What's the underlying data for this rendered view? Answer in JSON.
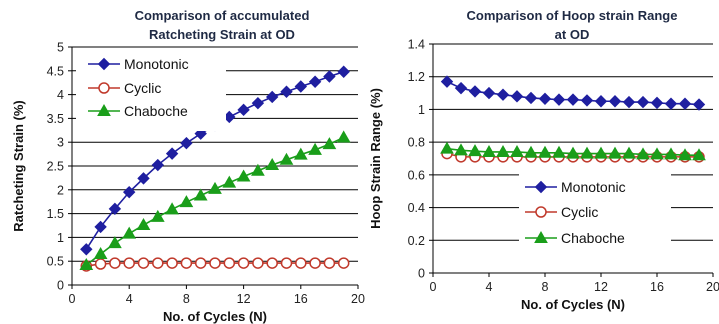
{
  "chart_data": [
    {
      "type": "line",
      "title_lines": [
        "Comparison of accumulated",
        "Ratcheting Strain at OD"
      ],
      "xlabel": "No. of Cycles (N)",
      "ylabel": "Ratcheting Strain (%)",
      "xlim": [
        0,
        20
      ],
      "ylim": [
        0,
        5
      ],
      "xticks": [
        "0",
        "4",
        "8",
        "12",
        "16",
        "20"
      ],
      "yticks": [
        "0",
        "0.5",
        "1",
        "1.5",
        "2",
        "2.5",
        "3",
        "3.5",
        "4",
        "4.5",
        "5"
      ],
      "grid": "horizontal",
      "legend_position": "top-left",
      "x": [
        1,
        2,
        3,
        4,
        5,
        6,
        7,
        8,
        9,
        10,
        11,
        12,
        13,
        14,
        15,
        16,
        17,
        18,
        19
      ],
      "series": [
        {
          "name": "Monotonic",
          "marker": "diamond",
          "color": "#1f1fa0",
          "values": [
            0.75,
            1.22,
            1.6,
            1.95,
            2.24,
            2.52,
            2.76,
            2.98,
            3.18,
            3.36,
            3.53,
            3.68,
            3.82,
            3.95,
            4.06,
            4.17,
            4.27,
            4.38,
            4.48
          ]
        },
        {
          "name": "Cyclic",
          "marker": "circle-open",
          "color": "#c0392b",
          "values": [
            0.4,
            0.44,
            0.46,
            0.46,
            0.46,
            0.46,
            0.46,
            0.46,
            0.46,
            0.46,
            0.46,
            0.46,
            0.46,
            0.46,
            0.46,
            0.46,
            0.46,
            0.46,
            0.46
          ]
        },
        {
          "name": "Chaboche",
          "marker": "triangle",
          "color": "#1a9e1a",
          "values": [
            0.42,
            0.65,
            0.88,
            1.08,
            1.26,
            1.43,
            1.59,
            1.74,
            1.88,
            2.02,
            2.15,
            2.28,
            2.4,
            2.52,
            2.63,
            2.74,
            2.84,
            2.96,
            3.1
          ]
        }
      ]
    },
    {
      "type": "line",
      "title_lines": [
        "Comparison of Hoop strain Range",
        "at OD"
      ],
      "xlabel": "No. of Cycles (N)",
      "ylabel": "Hoop Strain Range (%)",
      "xlim": [
        0,
        20
      ],
      "ylim": [
        0,
        1.4
      ],
      "xticks": [
        "0",
        "4",
        "8",
        "12",
        "16",
        "20"
      ],
      "yticks": [
        "0",
        "0.2",
        "0.4",
        "0.6",
        "0.8",
        "1",
        "1.2",
        "1.4"
      ],
      "grid": "horizontal",
      "legend_position": "bottom-center",
      "x": [
        1,
        2,
        3,
        4,
        5,
        6,
        7,
        8,
        9,
        10,
        11,
        12,
        13,
        14,
        15,
        16,
        17,
        18,
        19
      ],
      "series": [
        {
          "name": "Monotonic",
          "marker": "diamond",
          "color": "#1f1fa0",
          "values": [
            1.17,
            1.13,
            1.11,
            1.1,
            1.09,
            1.08,
            1.07,
            1.065,
            1.06,
            1.06,
            1.055,
            1.05,
            1.05,
            1.045,
            1.045,
            1.04,
            1.035,
            1.035,
            1.03
          ]
        },
        {
          "name": "Cyclic",
          "marker": "circle-open",
          "color": "#c0392b",
          "values": [
            0.73,
            0.71,
            0.71,
            0.71,
            0.71,
            0.71,
            0.71,
            0.71,
            0.71,
            0.71,
            0.71,
            0.71,
            0.71,
            0.71,
            0.71,
            0.71,
            0.71,
            0.71,
            0.71
          ]
        },
        {
          "name": "Chaboche",
          "marker": "triangle",
          "color": "#1a9e1a",
          "values": [
            0.76,
            0.75,
            0.745,
            0.74,
            0.74,
            0.74,
            0.735,
            0.735,
            0.735,
            0.73,
            0.73,
            0.73,
            0.73,
            0.73,
            0.725,
            0.725,
            0.725,
            0.72,
            0.72
          ]
        }
      ]
    }
  ]
}
